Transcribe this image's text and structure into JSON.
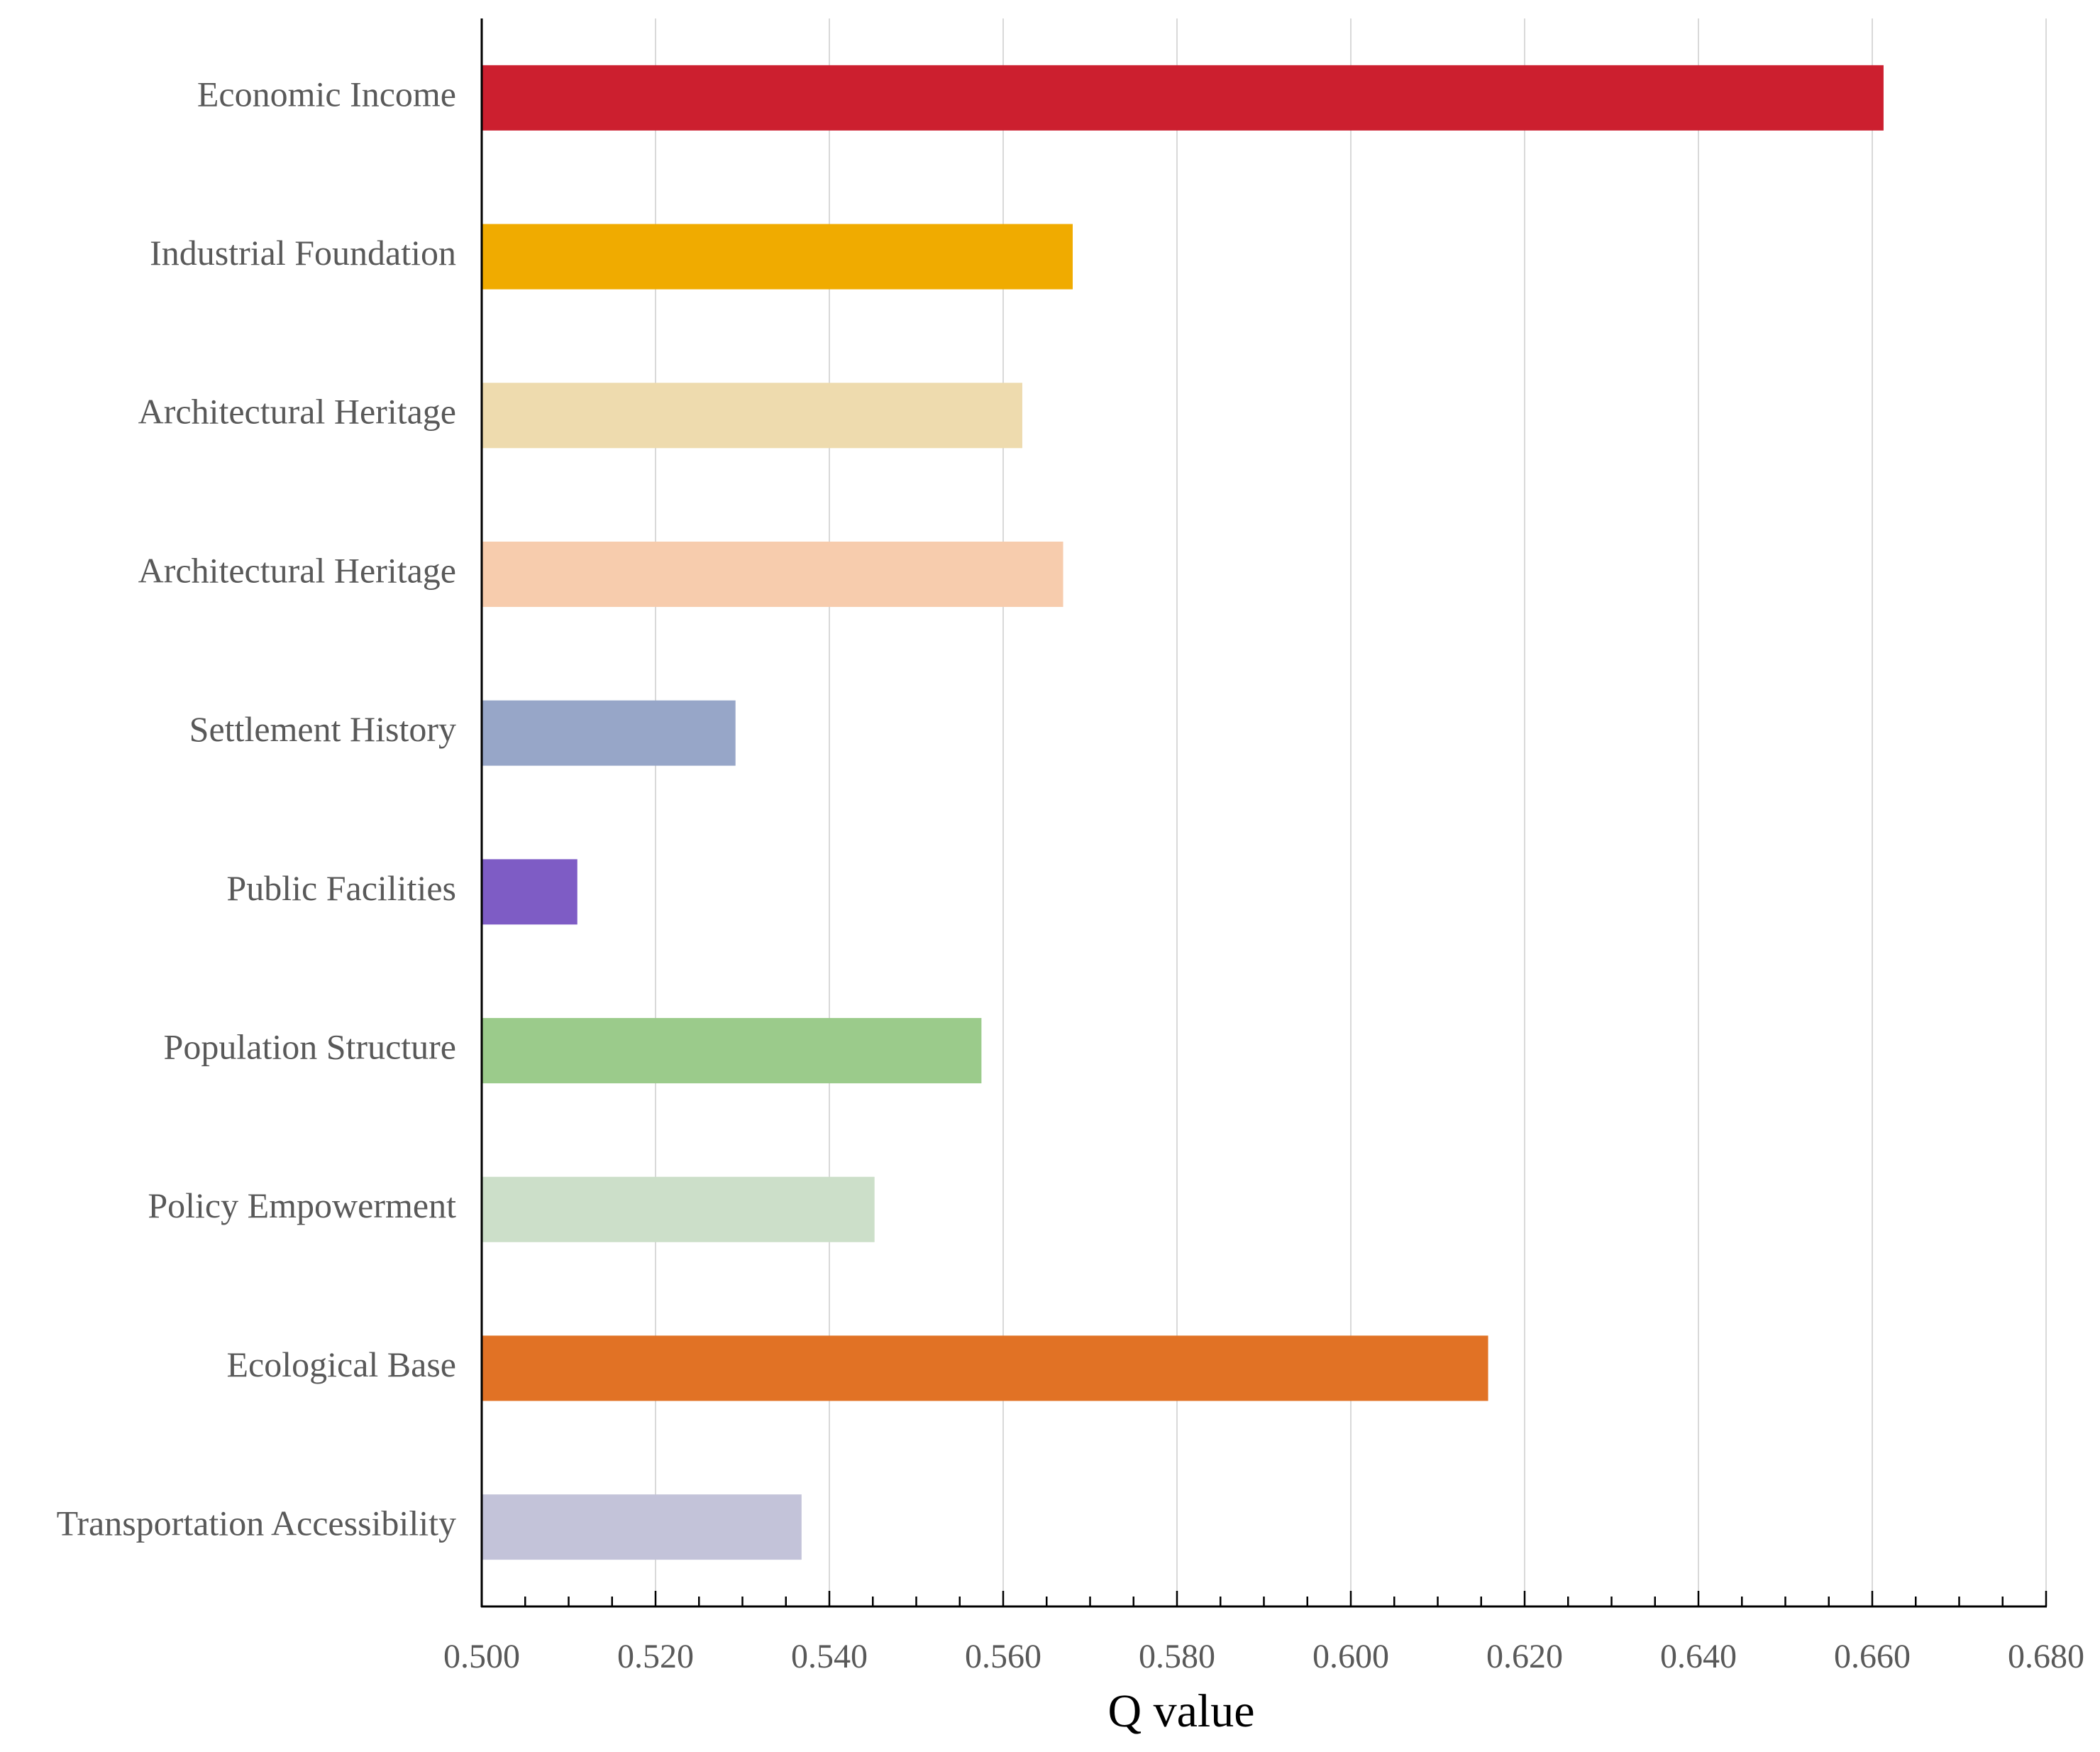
{
  "chart_data": {
    "type": "bar",
    "orientation": "horizontal",
    "title": "",
    "xlabel": "Q value",
    "ylabel": "",
    "xlim": [
      0.5,
      0.68
    ],
    "grid": true,
    "x_ticks": [
      0.5,
      0.52,
      0.54,
      0.56,
      0.58,
      0.6,
      0.62,
      0.64,
      0.66,
      0.68
    ],
    "x_tick_labels": [
      "0.500",
      "0.520",
      "0.540",
      "0.560",
      "0.580",
      "0.600",
      "0.620",
      "0.640",
      "0.660",
      "0.680"
    ],
    "categories": [
      "Economic Income",
      "Industrial Foundation",
      "Architectural Heritage",
      "Architectural Heritage",
      "Settlement History",
      "Public Facilities",
      "Population Structure",
      "Policy Empowerment",
      "Ecological Base",
      "Transportation Accessibility"
    ],
    "values": [
      0.6613,
      0.568,
      0.5622,
      0.5669,
      0.5292,
      0.511,
      0.5575,
      0.5452,
      0.6158,
      0.5368
    ],
    "colors": [
      "#CC1F2F",
      "#F0AB00",
      "#EEDBAE",
      "#F7CCAD",
      "#97A6C8",
      "#7E5CC5",
      "#9BCB8B",
      "#CCDFC9",
      "#E17225",
      "#C3C3D9"
    ],
    "axis_color": "#000000",
    "grid_color": "#D9D9D9"
  }
}
